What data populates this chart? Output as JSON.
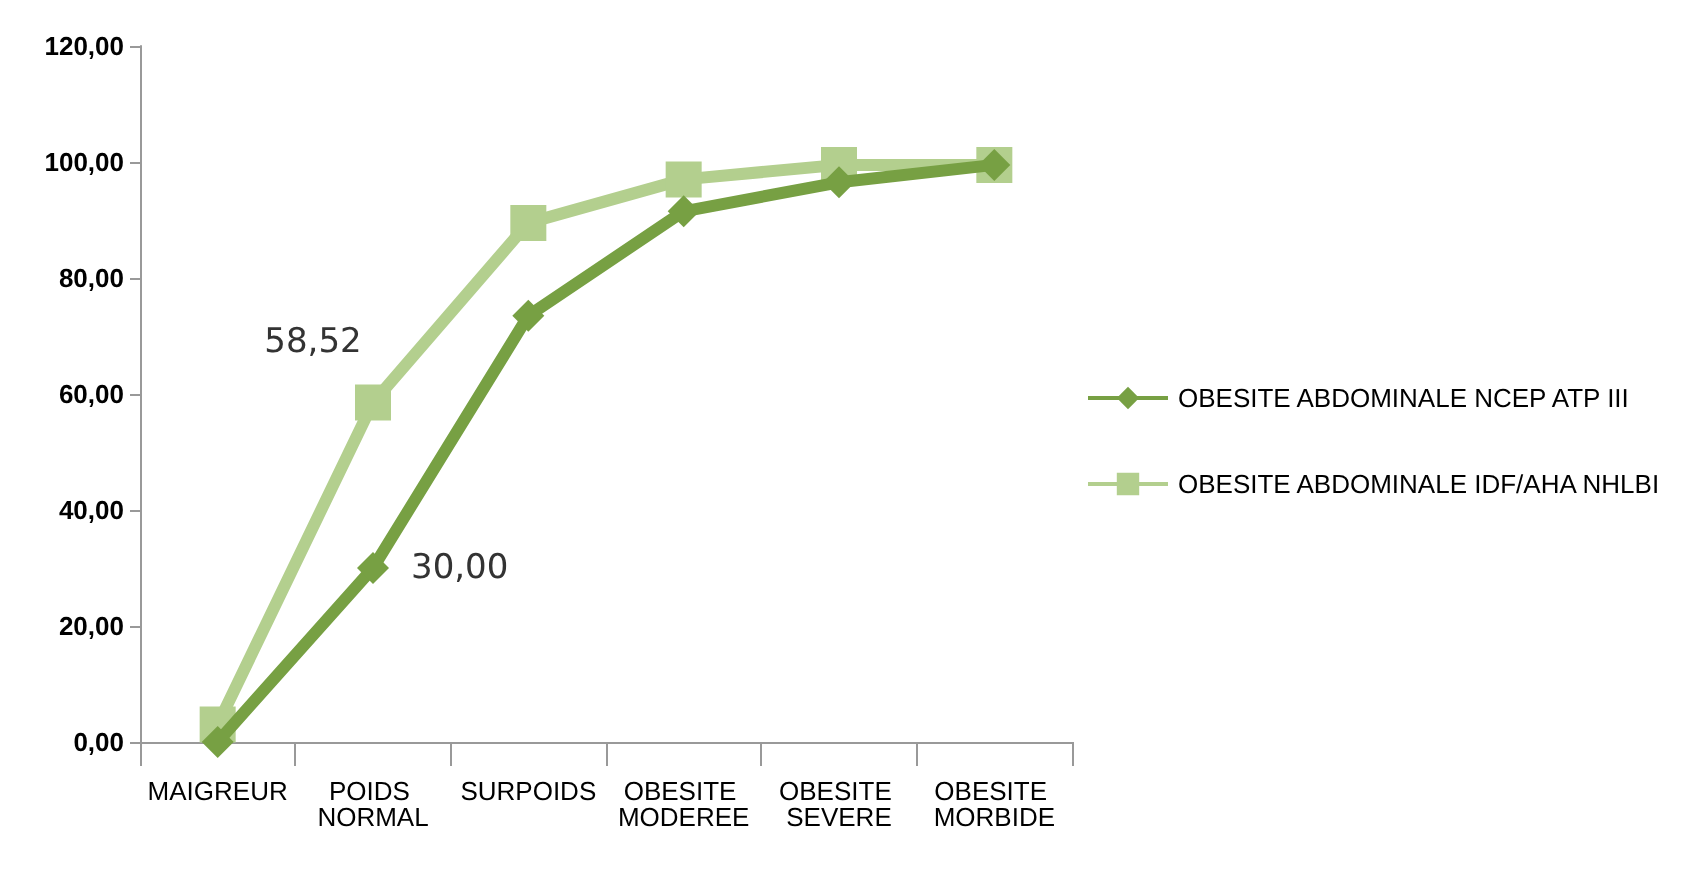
{
  "chart_data": {
    "type": "line",
    "categories": [
      "MAIGREUR",
      "POIDS NORMAL",
      "SURPOIDS",
      "OBESITE MODEREE",
      "OBESITE SEVERE",
      "OBESITE MORBIDE"
    ],
    "series": [
      {
        "name": "OBESITE ABDOMINALE NCEP ATP III",
        "color": "#77a043",
        "marker": "diamond",
        "values": [
          0,
          30,
          73.5,
          91.5,
          96.5,
          99.5
        ],
        "value_labels": [
          null,
          "30,00",
          null,
          null,
          null,
          null
        ]
      },
      {
        "name": "OBESITE ABDOMINALE IDF/AHA NHLBI",
        "color": "#b3cf8e",
        "marker": "square",
        "values": [
          3,
          58.52,
          89.5,
          97,
          99.5,
          99.5
        ],
        "value_labels": [
          null,
          "58,52",
          null,
          null,
          null,
          null
        ]
      }
    ],
    "ylim": [
      0,
      120
    ],
    "yticks": [
      {
        "value": 0,
        "label": "0,00"
      },
      {
        "value": 20,
        "label": "20,00"
      },
      {
        "value": 40,
        "label": "40,00"
      },
      {
        "value": 60,
        "label": "60,00"
      },
      {
        "value": 80,
        "label": "80,00"
      },
      {
        "value": 100,
        "label": "100,00"
      },
      {
        "value": 120,
        "label": "120,00"
      }
    ],
    "grid": false,
    "legend": "right"
  }
}
